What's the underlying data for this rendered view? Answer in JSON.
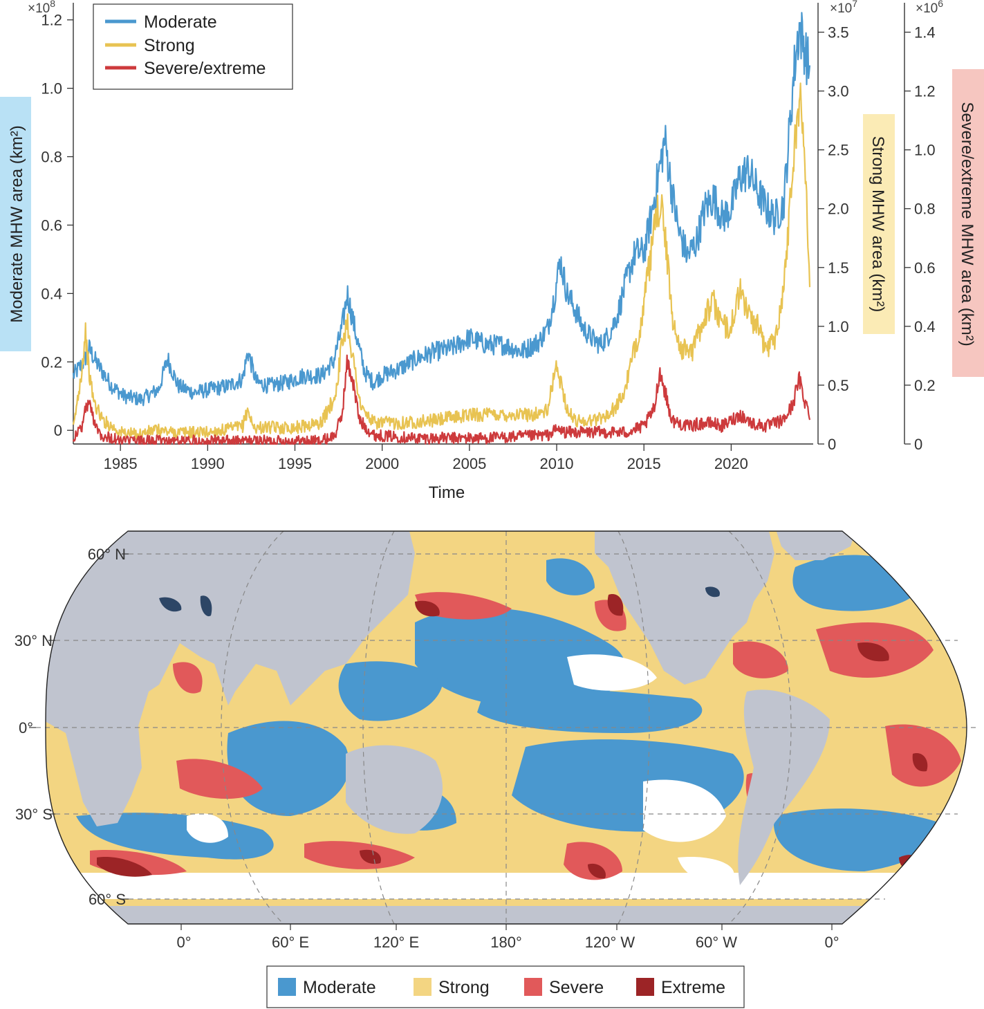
{
  "chart_data": {
    "type": "line",
    "xlabel": "Time",
    "x_ticks": [
      1985,
      1990,
      1995,
      2000,
      2005,
      2010,
      2015,
      2020
    ],
    "xlim": [
      1982.3,
      2024.7
    ],
    "legend": [
      "Moderate",
      "Strong",
      "Severe/extreme"
    ],
    "colors": {
      "moderate": "#4a98cf",
      "strong": "#e8c352",
      "severe": "#cd3a3c"
    },
    "axes": {
      "left": {
        "label": "Moderate MHW area (km²)",
        "multiplier": "×10",
        "exp": "8",
        "ticks": [
          "0",
          "0.2",
          "0.4",
          "0.6",
          "0.8",
          "1.0",
          "1.2"
        ],
        "ylim": [
          -0.04,
          1.25
        ]
      },
      "right1": {
        "label": "Strong MHW area (km²)",
        "multiplier": "×10",
        "exp": "7",
        "ticks": [
          "0",
          "0.5",
          "1.0",
          "1.5",
          "2.0",
          "2.5",
          "3.0",
          "3.5"
        ],
        "ylim": [
          0,
          3.75
        ]
      },
      "right2": {
        "label": "Severe/extreme MHW area (km²)",
        "multiplier": "×10",
        "exp": "6",
        "ticks": [
          "0",
          "0.2",
          "0.4",
          "0.6",
          "0.8",
          "1.0",
          "1.2",
          "1.4"
        ],
        "ylim": [
          0,
          1.5
        ]
      }
    },
    "series": [
      {
        "name": "Moderate",
        "axis": "left",
        "x": [
          1982.3,
          1982.9,
          1983.2,
          1983.6,
          1984.5,
          1985.2,
          1986.2,
          1987.2,
          1987.7,
          1988.3,
          1989.2,
          1990.2,
          1991.2,
          1992.0,
          1992.3,
          1992.8,
          1993.5,
          1994.5,
          1995.5,
          1996.5,
          1997.2,
          1997.7,
          1998.0,
          1998.5,
          1999.0,
          1999.5,
          2000.0,
          2001.0,
          2002.0,
          2003.0,
          2004.0,
          2005.0,
          2006.0,
          2007.0,
          2008.0,
          2009.0,
          2009.5,
          2009.9,
          2010.2,
          2010.6,
          2011.0,
          2011.5,
          2012.0,
          2012.5,
          2013.0,
          2013.5,
          2014.0,
          2014.5,
          2015.0,
          2015.4,
          2015.8,
          2016.2,
          2016.6,
          2017.0,
          2017.5,
          2018.0,
          2018.5,
          2019.0,
          2019.5,
          2020.0,
          2020.5,
          2021.0,
          2021.5,
          2022.0,
          2022.5,
          2023.0,
          2023.3,
          2023.6,
          2023.9,
          2024.2,
          2024.5
        ],
        "values": [
          0.16,
          0.2,
          0.24,
          0.2,
          0.13,
          0.1,
          0.09,
          0.12,
          0.21,
          0.13,
          0.11,
          0.12,
          0.13,
          0.15,
          0.23,
          0.14,
          0.13,
          0.14,
          0.16,
          0.16,
          0.2,
          0.3,
          0.4,
          0.28,
          0.17,
          0.14,
          0.16,
          0.18,
          0.21,
          0.23,
          0.24,
          0.27,
          0.25,
          0.25,
          0.23,
          0.26,
          0.3,
          0.4,
          0.5,
          0.4,
          0.36,
          0.3,
          0.27,
          0.25,
          0.28,
          0.34,
          0.44,
          0.52,
          0.52,
          0.62,
          0.74,
          0.85,
          0.7,
          0.58,
          0.51,
          0.55,
          0.65,
          0.68,
          0.62,
          0.65,
          0.74,
          0.76,
          0.7,
          0.65,
          0.62,
          0.66,
          0.85,
          1.05,
          1.18,
          1.12,
          1.05
        ]
      },
      {
        "name": "Strong",
        "axis": "right1",
        "x": [
          1982.3,
          1982.8,
          1983.0,
          1983.2,
          1983.5,
          1984.0,
          1985.0,
          1986.0,
          1987.0,
          1988.0,
          1989.0,
          1990.0,
          1991.0,
          1992.0,
          1992.3,
          1992.6,
          1993.5,
          1995.0,
          1996.5,
          1997.3,
          1997.7,
          1998.0,
          1998.3,
          1998.8,
          1999.5,
          2001.0,
          2003.0,
          2005.0,
          2007.0,
          2008.5,
          2009.5,
          2009.9,
          2010.2,
          2010.6,
          2011.0,
          2012.0,
          2013.0,
          2013.8,
          2014.3,
          2014.8,
          2015.3,
          2015.7,
          2016.0,
          2016.3,
          2016.7,
          2017.2,
          2017.8,
          2018.5,
          2019.0,
          2019.5,
          2020.0,
          2020.5,
          2021.0,
          2021.5,
          2022.0,
          2022.5,
          2023.0,
          2023.4,
          2023.7,
          2024.0,
          2024.3,
          2024.5
        ],
        "values": [
          0.12,
          0.65,
          0.95,
          0.6,
          0.35,
          0.2,
          0.1,
          0.08,
          0.12,
          0.1,
          0.1,
          0.1,
          0.12,
          0.15,
          0.3,
          0.14,
          0.14,
          0.14,
          0.18,
          0.4,
          0.85,
          1.05,
          0.75,
          0.3,
          0.18,
          0.18,
          0.2,
          0.25,
          0.25,
          0.25,
          0.28,
          0.65,
          0.55,
          0.3,
          0.2,
          0.2,
          0.25,
          0.4,
          0.7,
          1.0,
          1.5,
          1.9,
          2.1,
          1.6,
          1.0,
          0.8,
          0.8,
          1.1,
          1.2,
          1.0,
          1.0,
          1.3,
          1.1,
          1.0,
          0.8,
          0.9,
          1.3,
          2.1,
          2.7,
          2.9,
          2.2,
          1.4
        ]
      },
      {
        "name": "Severe/extreme",
        "axis": "right2",
        "x": [
          1982.3,
          1982.8,
          1983.0,
          1983.2,
          1983.5,
          1983.9,
          1985.0,
          1988.0,
          1991.0,
          1994.0,
          1996.5,
          1997.3,
          1997.7,
          1998.0,
          1998.3,
          1998.7,
          1999.5,
          2002.0,
          2006.0,
          2009.5,
          2010.0,
          2010.5,
          2012.0,
          2014.0,
          2015.0,
          2015.6,
          2015.9,
          2016.2,
          2016.6,
          2017.5,
          2018.3,
          2019.0,
          2019.5,
          2020.0,
          2020.5,
          2021.2,
          2022.0,
          2023.0,
          2023.5,
          2023.9,
          2024.2,
          2024.5
        ],
        "values": [
          0.02,
          0.06,
          0.12,
          0.14,
          0.08,
          0.03,
          0.01,
          0.01,
          0.01,
          0.01,
          0.01,
          0.03,
          0.1,
          0.28,
          0.22,
          0.08,
          0.03,
          0.02,
          0.02,
          0.03,
          0.05,
          0.04,
          0.04,
          0.04,
          0.06,
          0.12,
          0.25,
          0.18,
          0.08,
          0.06,
          0.07,
          0.07,
          0.06,
          0.08,
          0.1,
          0.07,
          0.06,
          0.08,
          0.13,
          0.22,
          0.15,
          0.1
        ]
      }
    ]
  },
  "map": {
    "lat_labels": [
      "60° N",
      "30° N",
      "0°",
      "30° S",
      "60° S"
    ],
    "lon_labels": [
      "0°",
      "60° E",
      "120° E",
      "180°",
      "120° W",
      "60° W",
      "0°"
    ],
    "legend": [
      "Moderate",
      "Strong",
      "Severe",
      "Extreme"
    ],
    "colors": {
      "moderate": "#4a98cf",
      "strong": "#f3d582",
      "severe": "#e1595a",
      "extreme": "#9c2426",
      "land": "#c0c4cf",
      "lakes": "#2d4666",
      "ice": "#ffffff"
    }
  }
}
